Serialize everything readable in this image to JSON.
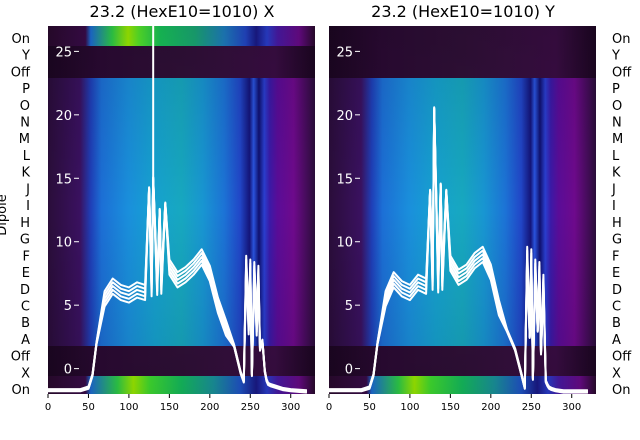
{
  "chart_data": [
    {
      "type": "heatmap",
      "title": "23.2 (HexE10=1010) X",
      "ylabel": "Dipole",
      "xlim": [
        0,
        330
      ],
      "ylim": [
        -2,
        27
      ],
      "xticks": [
        0,
        50,
        100,
        150,
        200,
        250,
        300
      ],
      "yticks": [
        0,
        5,
        10,
        15,
        20,
        25
      ],
      "grid": false,
      "row_labels": [
        "On",
        "X",
        "Off",
        "A",
        "B",
        "C",
        "D",
        "E",
        "F",
        "G",
        "H",
        "I",
        "J",
        "K",
        "L",
        "M",
        "N",
        "O",
        "P",
        "Off",
        "Y",
        "On"
      ],
      "trace_color": "#ffffff",
      "trace": {
        "x": [
          0,
          40,
          50,
          55,
          60,
          70,
          80,
          90,
          100,
          110,
          120,
          125,
          128,
          130,
          135,
          138,
          140,
          145,
          150,
          160,
          170,
          180,
          190,
          200,
          210,
          220,
          230,
          238,
          242,
          245,
          248,
          250,
          252,
          255,
          258,
          260,
          262,
          265,
          268,
          270,
          272,
          275,
          280,
          290,
          300,
          320
        ],
        "y": [
          -1.7,
          -1.7,
          -1.5,
          -0.5,
          2.0,
          5.5,
          6.5,
          6.0,
          5.8,
          6.2,
          6.0,
          14.2,
          6.3,
          15.0,
          6.4,
          12.5,
          6.5,
          13.0,
          8.0,
          7.0,
          7.4,
          8.0,
          8.8,
          7.5,
          5.0,
          3.2,
          1.8,
          -0.3,
          -1.0,
          8.3,
          3.3,
          8.0,
          -0.5,
          7.8,
          3.2,
          7.5,
          1.5,
          2.2,
          -0.2,
          -0.9,
          -1.2,
          -1.3,
          -1.4,
          -1.6,
          -1.7,
          -1.8
        ]
      },
      "spike_top": {
        "x": 130,
        "y": 27
      }
    },
    {
      "type": "heatmap",
      "title": "23.2 (HexE10=1010) Y",
      "xlim": [
        0,
        330
      ],
      "ylim": [
        -2,
        27
      ],
      "xticks": [
        0,
        50,
        100,
        150,
        200,
        250,
        300
      ],
      "yticks": [
        0,
        5,
        10,
        15,
        20,
        25
      ],
      "grid": false,
      "row_labels": [
        "On",
        "X",
        "Off",
        "A",
        "B",
        "C",
        "D",
        "E",
        "F",
        "G",
        "H",
        "I",
        "J",
        "K",
        "L",
        "M",
        "N",
        "O",
        "P",
        "Off",
        "Y",
        "On"
      ],
      "trace_color": "#ffffff",
      "trace": {
        "x": [
          0,
          40,
          50,
          55,
          60,
          70,
          80,
          90,
          100,
          110,
          120,
          125,
          128,
          130,
          135,
          138,
          140,
          145,
          150,
          160,
          170,
          180,
          190,
          200,
          210,
          220,
          230,
          238,
          242,
          245,
          248,
          250,
          252,
          255,
          258,
          260,
          262,
          265,
          268,
          270,
          272,
          275,
          280,
          290,
          300,
          320
        ],
        "y": [
          -1.7,
          -1.7,
          -1.5,
          -0.5,
          2.0,
          5.5,
          7.0,
          6.3,
          6.0,
          6.8,
          6.5,
          14.0,
          6.8,
          20.5,
          6.6,
          14.5,
          6.8,
          14.0,
          8.3,
          7.2,
          7.6,
          8.5,
          9.0,
          7.6,
          4.8,
          3.0,
          1.5,
          -0.5,
          -1.5,
          9.0,
          2.5,
          8.8,
          -0.8,
          8.0,
          3.0,
          7.8,
          1.2,
          6.8,
          -1.0,
          -1.3,
          -1.5,
          -1.6,
          -1.7,
          -1.8,
          -1.8,
          -1.8
        ]
      },
      "spike_top": null
    }
  ]
}
